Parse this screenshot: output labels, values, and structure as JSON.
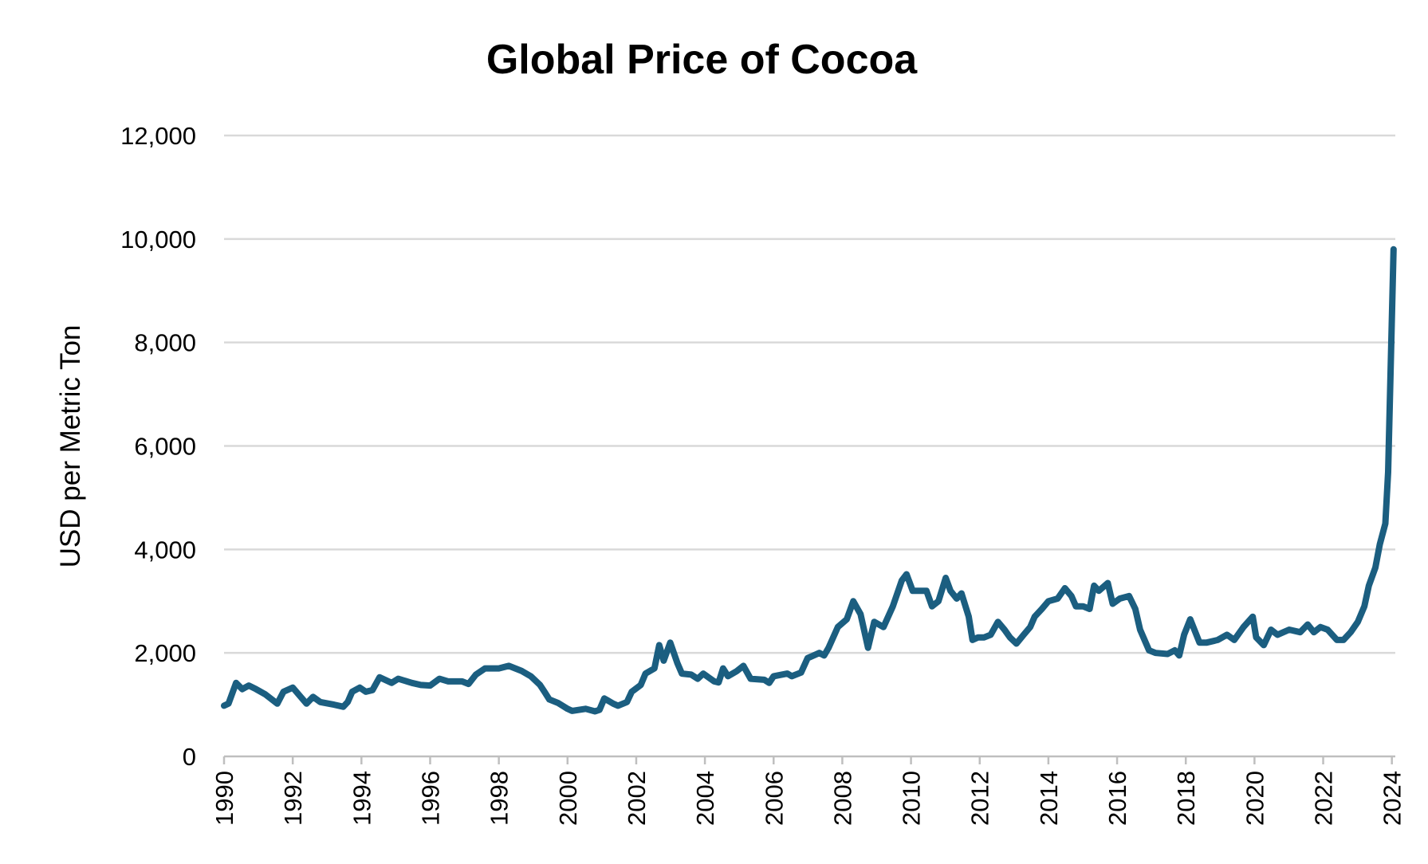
{
  "chart_data": {
    "type": "line",
    "title": "Global Price of Cocoa",
    "y_label": "USD per Metric Ton",
    "xlim": [
      1990,
      2024.1
    ],
    "xticks": [
      1990,
      1992,
      1994,
      1996,
      1998,
      2000,
      2002,
      2004,
      2006,
      2008,
      2010,
      2012,
      2014,
      2016,
      2018,
      2020,
      2022,
      2024
    ],
    "ylim": [
      0,
      12000
    ],
    "yticks": [
      0,
      {
        "value": 2000,
        "label": "2,000"
      },
      {
        "value": 4000,
        "label": "4,000"
      },
      {
        "value": 6000,
        "label": "6,000"
      },
      {
        "value": 8000,
        "label": "8,000"
      },
      {
        "value": 10000,
        "label": "10,000"
      },
      {
        "value": 12000,
        "label": "12,000"
      }
    ],
    "grid": true,
    "x": [
      1990.0,
      1990.13,
      1990.35,
      1990.53,
      1990.72,
      1990.93,
      1991.2,
      1991.55,
      1991.73,
      1992.0,
      1992.4,
      1992.59,
      1992.8,
      1993.2,
      1993.47,
      1993.6,
      1993.73,
      1993.95,
      1994.13,
      1994.32,
      1994.53,
      1994.88,
      1995.07,
      1995.47,
      1995.73,
      1996.0,
      1996.27,
      1996.53,
      1996.93,
      1997.12,
      1997.33,
      1997.6,
      1998.0,
      1998.29,
      1998.67,
      1998.93,
      1999.2,
      1999.33,
      1999.47,
      1999.73,
      2000.0,
      2000.13,
      2000.53,
      2000.8,
      2000.93,
      2001.07,
      2001.33,
      2001.47,
      2001.73,
      2001.87,
      2002.13,
      2002.27,
      2002.53,
      2002.67,
      2002.8,
      2002.99,
      2003.2,
      2003.33,
      2003.6,
      2003.79,
      2003.95,
      2004.27,
      2004.4,
      2004.53,
      2004.67,
      2004.93,
      2005.12,
      2005.33,
      2005.73,
      2005.87,
      2006.0,
      2006.4,
      2006.53,
      2006.8,
      2006.99,
      2007.33,
      2007.47,
      2007.6,
      2007.87,
      2008.13,
      2008.32,
      2008.53,
      2008.75,
      2008.93,
      2009.2,
      2009.47,
      2009.73,
      2009.87,
      2010.05,
      2010.27,
      2010.45,
      2010.61,
      2010.8,
      2011.01,
      2011.15,
      2011.33,
      2011.47,
      2011.68,
      2011.79,
      2011.95,
      2012.13,
      2012.32,
      2012.53,
      2012.72,
      2012.88,
      2013.07,
      2013.28,
      2013.47,
      2013.6,
      2013.81,
      2014.0,
      2014.27,
      2014.48,
      2014.67,
      2014.8,
      2015.01,
      2015.2,
      2015.33,
      2015.47,
      2015.73,
      2015.87,
      2016.08,
      2016.35,
      2016.53,
      2016.67,
      2016.93,
      2017.12,
      2017.47,
      2017.68,
      2017.81,
      2017.95,
      2018.13,
      2018.4,
      2018.61,
      2018.93,
      2019.2,
      2019.41,
      2019.68,
      2019.95,
      2020.05,
      2020.27,
      2020.48,
      2020.67,
      2021.01,
      2021.33,
      2021.55,
      2021.73,
      2021.92,
      2022.13,
      2022.4,
      2022.59,
      2022.8,
      2023.01,
      2023.2,
      2023.33,
      2023.52,
      2023.65,
      2023.81,
      2023.89,
      2024.05
    ],
    "series": [
      {
        "name": "Cocoa",
        "color": "#1b5e80",
        "values": [
          980,
          1020,
          1420,
          1300,
          1370,
          1300,
          1200,
          1020,
          1250,
          1330,
          1020,
          1150,
          1050,
          1000,
          960,
          1050,
          1250,
          1330,
          1250,
          1280,
          1530,
          1420,
          1500,
          1420,
          1380,
          1370,
          1500,
          1450,
          1450,
          1400,
          1580,
          1700,
          1700,
          1750,
          1650,
          1550,
          1380,
          1250,
          1100,
          1030,
          920,
          880,
          920,
          870,
          900,
          1120,
          1020,
          980,
          1050,
          1250,
          1380,
          1600,
          1700,
          2150,
          1850,
          2200,
          1800,
          1600,
          1580,
          1500,
          1600,
          1450,
          1430,
          1700,
          1550,
          1650,
          1750,
          1500,
          1480,
          1420,
          1550,
          1600,
          1550,
          1620,
          1900,
          2000,
          1950,
          2100,
          2500,
          2650,
          3000,
          2750,
          2100,
          2600,
          2500,
          2900,
          3400,
          3520,
          3200,
          3200,
          3200,
          2900,
          3000,
          3450,
          3200,
          3050,
          3150,
          2700,
          2250,
          2300,
          2300,
          2350,
          2600,
          2450,
          2300,
          2180,
          2350,
          2500,
          2700,
          2850,
          3000,
          3050,
          3250,
          3100,
          2900,
          2900,
          2850,
          3300,
          3200,
          3350,
          2950,
          3050,
          3100,
          2850,
          2450,
          2050,
          2000,
          1980,
          2050,
          1950,
          2350,
          2650,
          2200,
          2200,
          2250,
          2350,
          2250,
          2500,
          2700,
          2300,
          2150,
          2450,
          2350,
          2450,
          2400,
          2550,
          2400,
          2500,
          2450,
          2250,
          2250,
          2400,
          2600,
          2900,
          3300,
          3650,
          4100,
          4500,
          5500,
          9800
        ]
      }
    ]
  }
}
